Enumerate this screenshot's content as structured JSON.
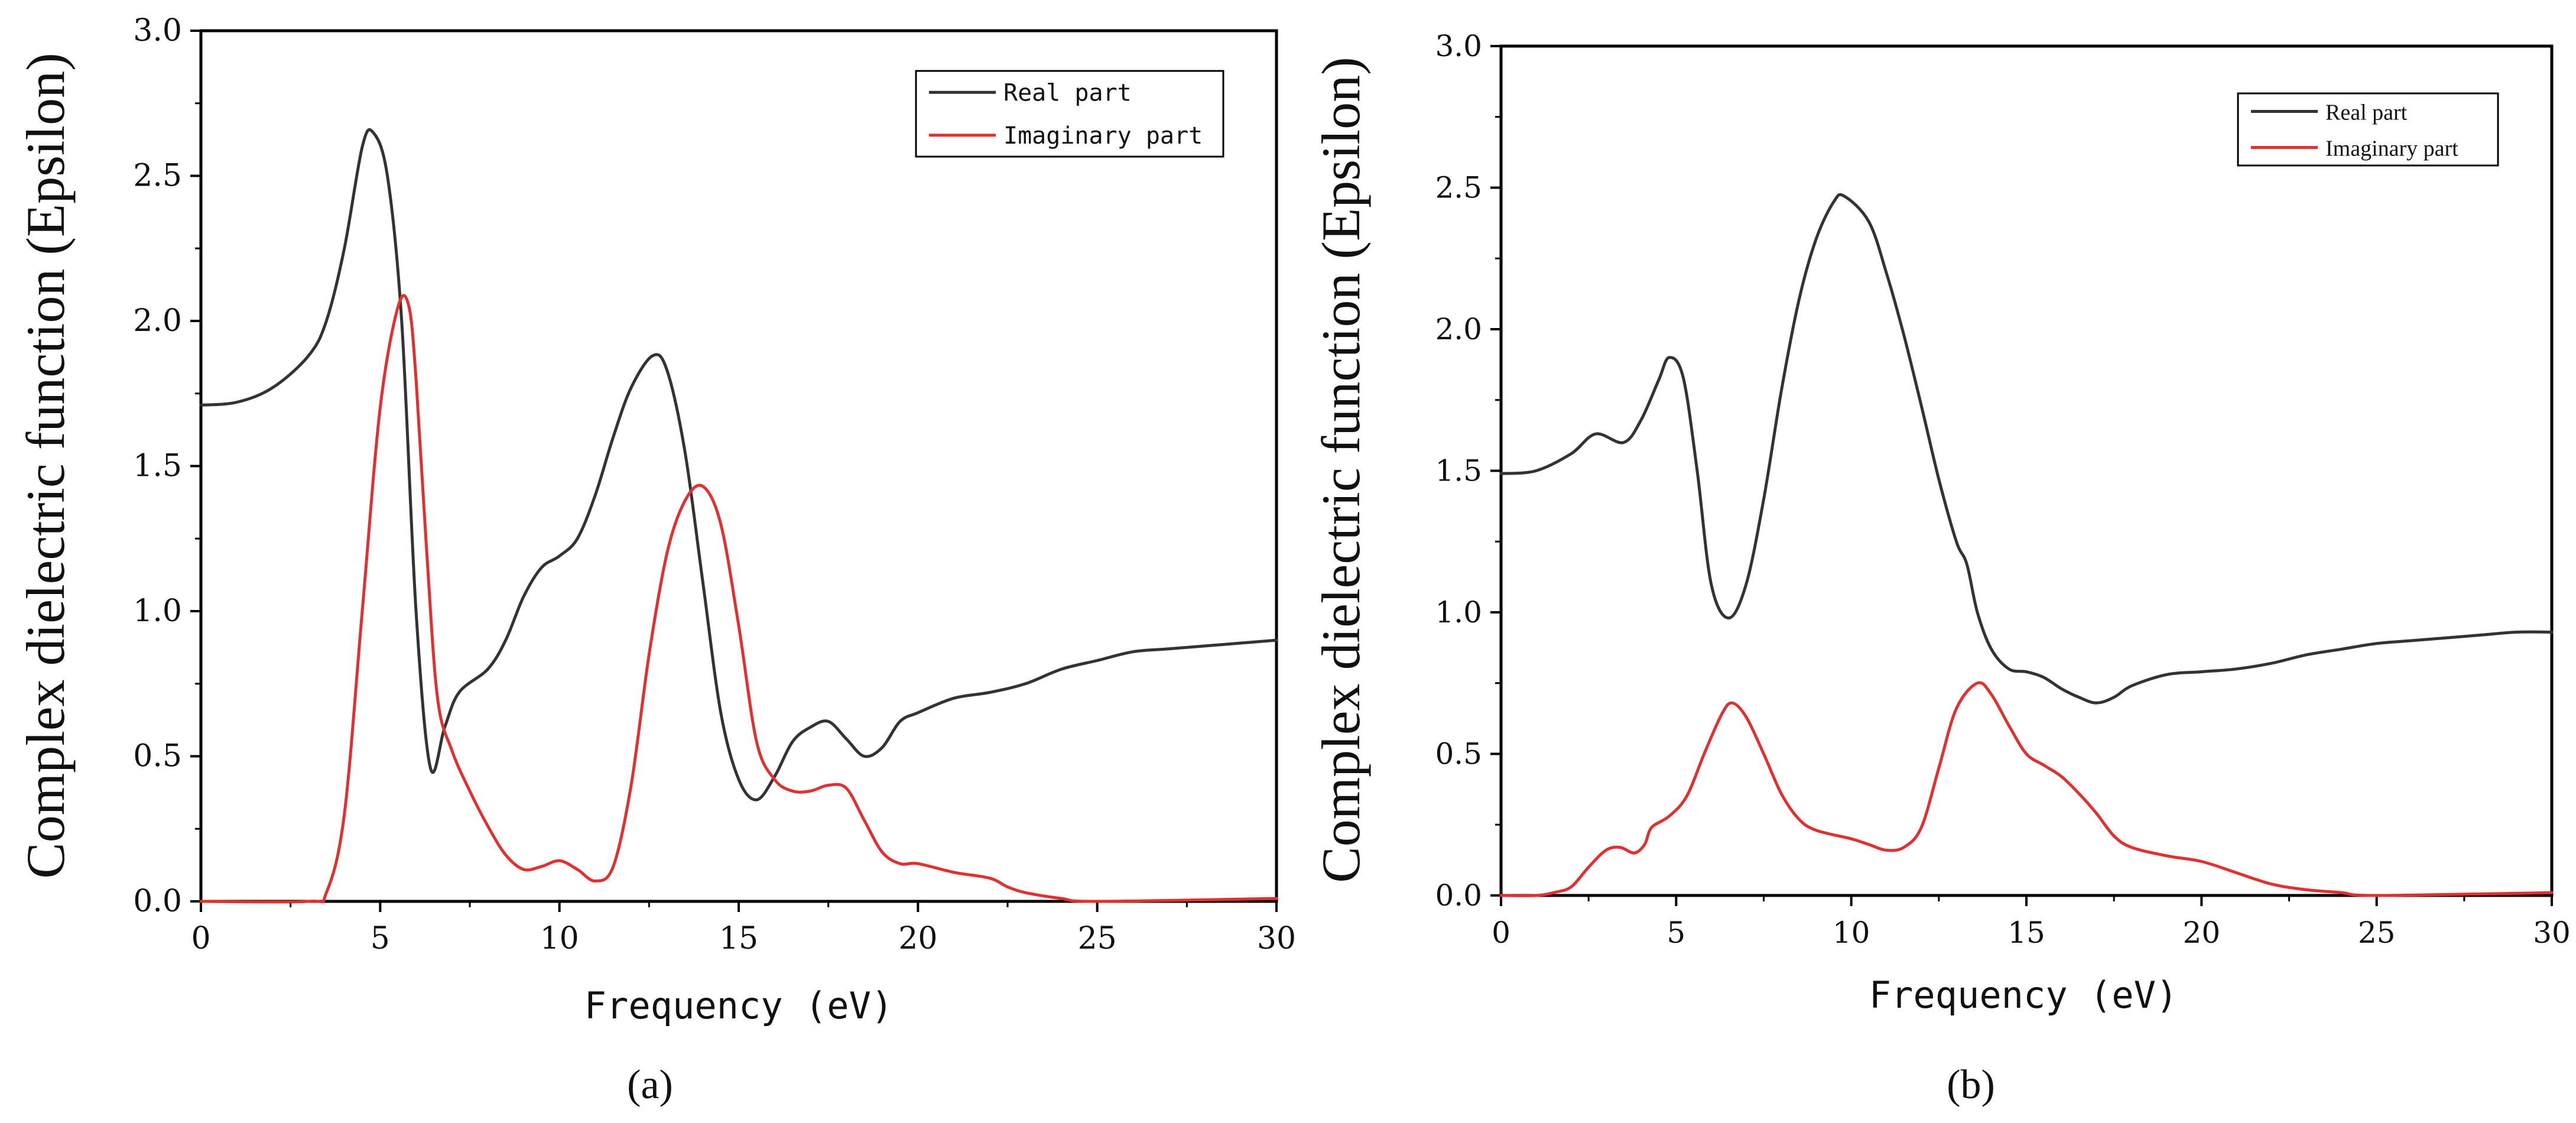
{
  "chart_data": [
    {
      "type": "line",
      "panel_label": "a",
      "xlabel": "Frequency (eV)",
      "ylabel": "Complex dielectric function (Epsilon)",
      "xlim": [
        0,
        30
      ],
      "ylim": [
        0,
        3.0
      ],
      "x_ticks": [
        "0",
        "5",
        "10",
        "15",
        "20",
        "25",
        "30"
      ],
      "y_ticks": [
        "0.0",
        "0.5",
        "1.0",
        "1.5",
        "2.0",
        "2.5",
        "3.0"
      ],
      "legend_position": "top-right",
      "series": [
        {
          "name": "Real part",
          "color": "#333333",
          "points": [
            [
              0,
              1.71
            ],
            [
              1,
              1.72
            ],
            [
              2,
              1.77
            ],
            [
              3,
              1.88
            ],
            [
              3.5,
              2.0
            ],
            [
              4,
              2.25
            ],
            [
              4.5,
              2.6
            ],
            [
              4.8,
              2.65
            ],
            [
              5.2,
              2.5
            ],
            [
              5.6,
              2.0
            ],
            [
              6.0,
              1.0
            ],
            [
              6.4,
              0.46
            ],
            [
              6.8,
              0.6
            ],
            [
              7.2,
              0.72
            ],
            [
              8,
              0.8
            ],
            [
              8.5,
              0.9
            ],
            [
              9,
              1.05
            ],
            [
              9.5,
              1.15
            ],
            [
              10,
              1.19
            ],
            [
              10.5,
              1.25
            ],
            [
              11,
              1.4
            ],
            [
              11.5,
              1.6
            ],
            [
              12,
              1.77
            ],
            [
              12.6,
              1.88
            ],
            [
              13,
              1.83
            ],
            [
              13.5,
              1.55
            ],
            [
              14,
              1.1
            ],
            [
              14.5,
              0.65
            ],
            [
              15,
              0.42
            ],
            [
              15.5,
              0.35
            ],
            [
              16,
              0.43
            ],
            [
              16.5,
              0.55
            ],
            [
              17,
              0.6
            ],
            [
              17.5,
              0.62
            ],
            [
              18,
              0.56
            ],
            [
              18.5,
              0.5
            ],
            [
              19,
              0.53
            ],
            [
              19.5,
              0.62
            ],
            [
              20,
              0.65
            ],
            [
              21,
              0.7
            ],
            [
              22,
              0.72
            ],
            [
              23,
              0.75
            ],
            [
              24,
              0.8
            ],
            [
              25,
              0.83
            ],
            [
              26,
              0.86
            ],
            [
              27,
              0.87
            ],
            [
              28,
              0.88
            ],
            [
              29,
              0.89
            ],
            [
              30,
              0.9
            ]
          ]
        },
        {
          "name": "Imaginary part",
          "color": "#e03030",
          "points": [
            [
              0,
              0.0
            ],
            [
              3,
              0.0
            ],
            [
              3.5,
              0.03
            ],
            [
              4,
              0.3
            ],
            [
              4.5,
              1.0
            ],
            [
              5,
              1.7
            ],
            [
              5.5,
              2.05
            ],
            [
              5.8,
              2.05
            ],
            [
              6.0,
              1.8
            ],
            [
              6.3,
              1.2
            ],
            [
              6.6,
              0.7
            ],
            [
              7,
              0.52
            ],
            [
              7.5,
              0.38
            ],
            [
              8,
              0.26
            ],
            [
              8.5,
              0.16
            ],
            [
              9,
              0.11
            ],
            [
              9.5,
              0.12
            ],
            [
              10,
              0.14
            ],
            [
              10.5,
              0.11
            ],
            [
              11,
              0.07
            ],
            [
              11.5,
              0.12
            ],
            [
              12,
              0.4
            ],
            [
              12.5,
              0.85
            ],
            [
              13,
              1.2
            ],
            [
              13.5,
              1.38
            ],
            [
              14,
              1.43
            ],
            [
              14.5,
              1.3
            ],
            [
              15,
              0.95
            ],
            [
              15.5,
              0.55
            ],
            [
              16,
              0.42
            ],
            [
              16.5,
              0.38
            ],
            [
              17,
              0.38
            ],
            [
              17.5,
              0.4
            ],
            [
              18,
              0.39
            ],
            [
              18.5,
              0.28
            ],
            [
              19,
              0.17
            ],
            [
              19.5,
              0.13
            ],
            [
              20,
              0.13
            ],
            [
              21,
              0.1
            ],
            [
              22,
              0.08
            ],
            [
              22.5,
              0.05
            ],
            [
              23,
              0.03
            ],
            [
              24,
              0.01
            ],
            [
              25,
              0.0
            ],
            [
              30,
              0.01
            ]
          ]
        }
      ]
    },
    {
      "type": "line",
      "panel_label": "b",
      "xlabel": "Frequency (eV)",
      "ylabel": "Complex dielectric function (Epsilon)",
      "xlim": [
        0,
        30
      ],
      "ylim": [
        0,
        3.0
      ],
      "x_ticks": [
        "0",
        "5",
        "10",
        "15",
        "20",
        "25",
        "30"
      ],
      "y_ticks": [
        "0.0",
        "0.5",
        "1.0",
        "1.5",
        "2.0",
        "2.5",
        "3.0"
      ],
      "legend_position": "top-right",
      "series": [
        {
          "name": "Real part",
          "color": "#333333",
          "points": [
            [
              0,
              1.49
            ],
            [
              1,
              1.5
            ],
            [
              2,
              1.56
            ],
            [
              2.7,
              1.63
            ],
            [
              3.5,
              1.6
            ],
            [
              4,
              1.68
            ],
            [
              4.5,
              1.82
            ],
            [
              4.8,
              1.9
            ],
            [
              5.2,
              1.83
            ],
            [
              5.6,
              1.5
            ],
            [
              6,
              1.1
            ],
            [
              6.5,
              0.98
            ],
            [
              7,
              1.1
            ],
            [
              7.5,
              1.4
            ],
            [
              8,
              1.78
            ],
            [
              8.5,
              2.1
            ],
            [
              9,
              2.32
            ],
            [
              9.5,
              2.45
            ],
            [
              9.8,
              2.47
            ],
            [
              10.5,
              2.38
            ],
            [
              11,
              2.2
            ],
            [
              11.5,
              1.98
            ],
            [
              12,
              1.73
            ],
            [
              12.5,
              1.47
            ],
            [
              13,
              1.25
            ],
            [
              13.3,
              1.17
            ],
            [
              13.6,
              1.0
            ],
            [
              14,
              0.87
            ],
            [
              14.5,
              0.8
            ],
            [
              15,
              0.79
            ],
            [
              15.5,
              0.77
            ],
            [
              16,
              0.73
            ],
            [
              16.5,
              0.7
            ],
            [
              17,
              0.68
            ],
            [
              17.5,
              0.7
            ],
            [
              18,
              0.74
            ],
            [
              19,
              0.78
            ],
            [
              20,
              0.79
            ],
            [
              21,
              0.8
            ],
            [
              22,
              0.82
            ],
            [
              23,
              0.85
            ],
            [
              24,
              0.87
            ],
            [
              25,
              0.89
            ],
            [
              26,
              0.9
            ],
            [
              27,
              0.91
            ],
            [
              28,
              0.92
            ],
            [
              29,
              0.93
            ],
            [
              30,
              0.93
            ]
          ]
        },
        {
          "name": "Imaginary part",
          "color": "#e03030",
          "points": [
            [
              0,
              0.0
            ],
            [
              1,
              0.0
            ],
            [
              1.5,
              0.01
            ],
            [
              2,
              0.03
            ],
            [
              2.5,
              0.1
            ],
            [
              3,
              0.16
            ],
            [
              3.4,
              0.17
            ],
            [
              3.8,
              0.15
            ],
            [
              4.1,
              0.18
            ],
            [
              4.3,
              0.24
            ],
            [
              4.8,
              0.28
            ],
            [
              5.3,
              0.35
            ],
            [
              5.8,
              0.5
            ],
            [
              6.3,
              0.64
            ],
            [
              6.6,
              0.68
            ],
            [
              7,
              0.63
            ],
            [
              7.5,
              0.5
            ],
            [
              8,
              0.36
            ],
            [
              8.5,
              0.27
            ],
            [
              9,
              0.23
            ],
            [
              10,
              0.2
            ],
            [
              10.5,
              0.18
            ],
            [
              11,
              0.16
            ],
            [
              11.5,
              0.17
            ],
            [
              12,
              0.24
            ],
            [
              12.5,
              0.45
            ],
            [
              13,
              0.66
            ],
            [
              13.6,
              0.75
            ],
            [
              14,
              0.71
            ],
            [
              14.5,
              0.6
            ],
            [
              15,
              0.5
            ],
            [
              15.5,
              0.46
            ],
            [
              16,
              0.42
            ],
            [
              16.5,
              0.36
            ],
            [
              17,
              0.29
            ],
            [
              17.5,
              0.21
            ],
            [
              18,
              0.17
            ],
            [
              19,
              0.14
            ],
            [
              20,
              0.12
            ],
            [
              21,
              0.08
            ],
            [
              22,
              0.04
            ],
            [
              23,
              0.02
            ],
            [
              24,
              0.01
            ],
            [
              25,
              0.0
            ],
            [
              30,
              0.01
            ]
          ]
        }
      ]
    }
  ]
}
